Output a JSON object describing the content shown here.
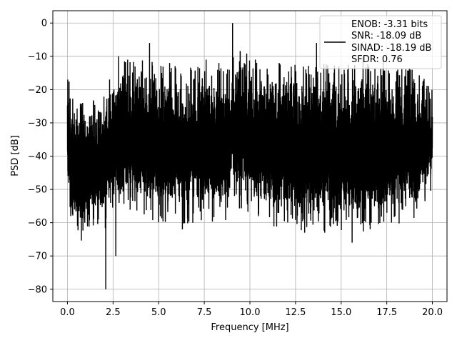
{
  "chart_data": {
    "type": "line",
    "xlabel": "Frequency [MHz]",
    "ylabel": "PSD [dB]",
    "xlim": [
      -0.8,
      20.8
    ],
    "ylim": [
      -83.7,
      3.7
    ],
    "xticks": [
      0.0,
      2.5,
      5.0,
      7.5,
      10.0,
      12.5,
      15.0,
      17.5,
      20.0
    ],
    "xtick_labels": [
      "0.0",
      "2.5",
      "5.0",
      "7.5",
      "10.0",
      "12.5",
      "15.0",
      "17.5",
      "20.0"
    ],
    "yticks": [
      0,
      -10,
      -20,
      -30,
      -40,
      -50,
      -60,
      -70,
      -80
    ],
    "ytick_labels": [
      "0",
      "−10",
      "−20",
      "−30",
      "−40",
      "−50",
      "−60",
      "−70",
      "−80"
    ],
    "grid": true,
    "legend": {
      "placement": "upper right",
      "entries": [
        "ENOB: -3.31 bits",
        "SNR: -18.09 dB",
        "SINAD: -18.19 dB",
        "SFDR: 0.76"
      ]
    },
    "series": [
      {
        "color": "#000000",
        "envelope_knots": [
          {
            "x": 0.0,
            "upper": -17,
            "lower": -50
          },
          {
            "x": 0.25,
            "upper": -25,
            "lower": -58
          },
          {
            "x": 0.5,
            "upper": -27,
            "lower": -61
          },
          {
            "x": 1.0,
            "upper": -26,
            "lower": -60
          },
          {
            "x": 1.5,
            "upper": -26,
            "lower": -58
          },
          {
            "x": 1.9,
            "upper": -24,
            "lower": -55
          },
          {
            "x": 2.1,
            "upper": -22,
            "lower": -58
          },
          {
            "x": 2.5,
            "upper": -16,
            "lower": -52
          },
          {
            "x": 3.0,
            "upper": -14,
            "lower": -52
          },
          {
            "x": 4.0,
            "upper": -14,
            "lower": -52
          },
          {
            "x": 5.0,
            "upper": -15,
            "lower": -56
          },
          {
            "x": 6.0,
            "upper": -16,
            "lower": -56
          },
          {
            "x": 7.0,
            "upper": -16,
            "lower": -55
          },
          {
            "x": 8.0,
            "upper": -16,
            "lower": -55
          },
          {
            "x": 8.9,
            "upper": -16,
            "lower": -54
          },
          {
            "x": 9.0,
            "upper": -22,
            "lower": -40
          },
          {
            "x": 9.1,
            "upper": -10,
            "lower": -50
          },
          {
            "x": 10.0,
            "upper": -12,
            "lower": -52
          },
          {
            "x": 11.0,
            "upper": -14,
            "lower": -56
          },
          {
            "x": 12.0,
            "upper": -15,
            "lower": -57
          },
          {
            "x": 13.0,
            "upper": -16,
            "lower": -58
          },
          {
            "x": 14.0,
            "upper": -15,
            "lower": -58
          },
          {
            "x": 15.0,
            "upper": -16,
            "lower": -58
          },
          {
            "x": 16.0,
            "upper": -14,
            "lower": -58
          },
          {
            "x": 17.0,
            "upper": -16,
            "lower": -58
          },
          {
            "x": 18.0,
            "upper": -16,
            "lower": -56
          },
          {
            "x": 19.0,
            "upper": -17,
            "lower": -55
          },
          {
            "x": 20.0,
            "upper": -22,
            "lower": -46
          }
        ],
        "peaks": [
          {
            "x": 0.02,
            "y": -17
          },
          {
            "x": 0.55,
            "y": -61
          },
          {
            "x": 0.95,
            "y": -60
          },
          {
            "x": 2.1,
            "y": -80
          },
          {
            "x": 2.65,
            "y": -70
          },
          {
            "x": 2.8,
            "y": -10
          },
          {
            "x": 3.3,
            "y": -11
          },
          {
            "x": 4.5,
            "y": -6
          },
          {
            "x": 5.6,
            "y": -12
          },
          {
            "x": 6.3,
            "y": -62
          },
          {
            "x": 7.6,
            "y": -11
          },
          {
            "x": 8.3,
            "y": -12
          },
          {
            "x": 9.05,
            "y": 0
          },
          {
            "x": 13.0,
            "y": -63
          },
          {
            "x": 13.65,
            "y": -6
          },
          {
            "x": 14.1,
            "y": -63
          },
          {
            "x": 15.6,
            "y": -66
          },
          {
            "x": 16.2,
            "y": -10
          },
          {
            "x": 17.3,
            "y": -11
          },
          {
            "x": 17.95,
            "y": -58
          },
          {
            "x": 18.1,
            "y": -14
          },
          {
            "x": 18.8,
            "y": -14
          }
        ]
      }
    ]
  }
}
